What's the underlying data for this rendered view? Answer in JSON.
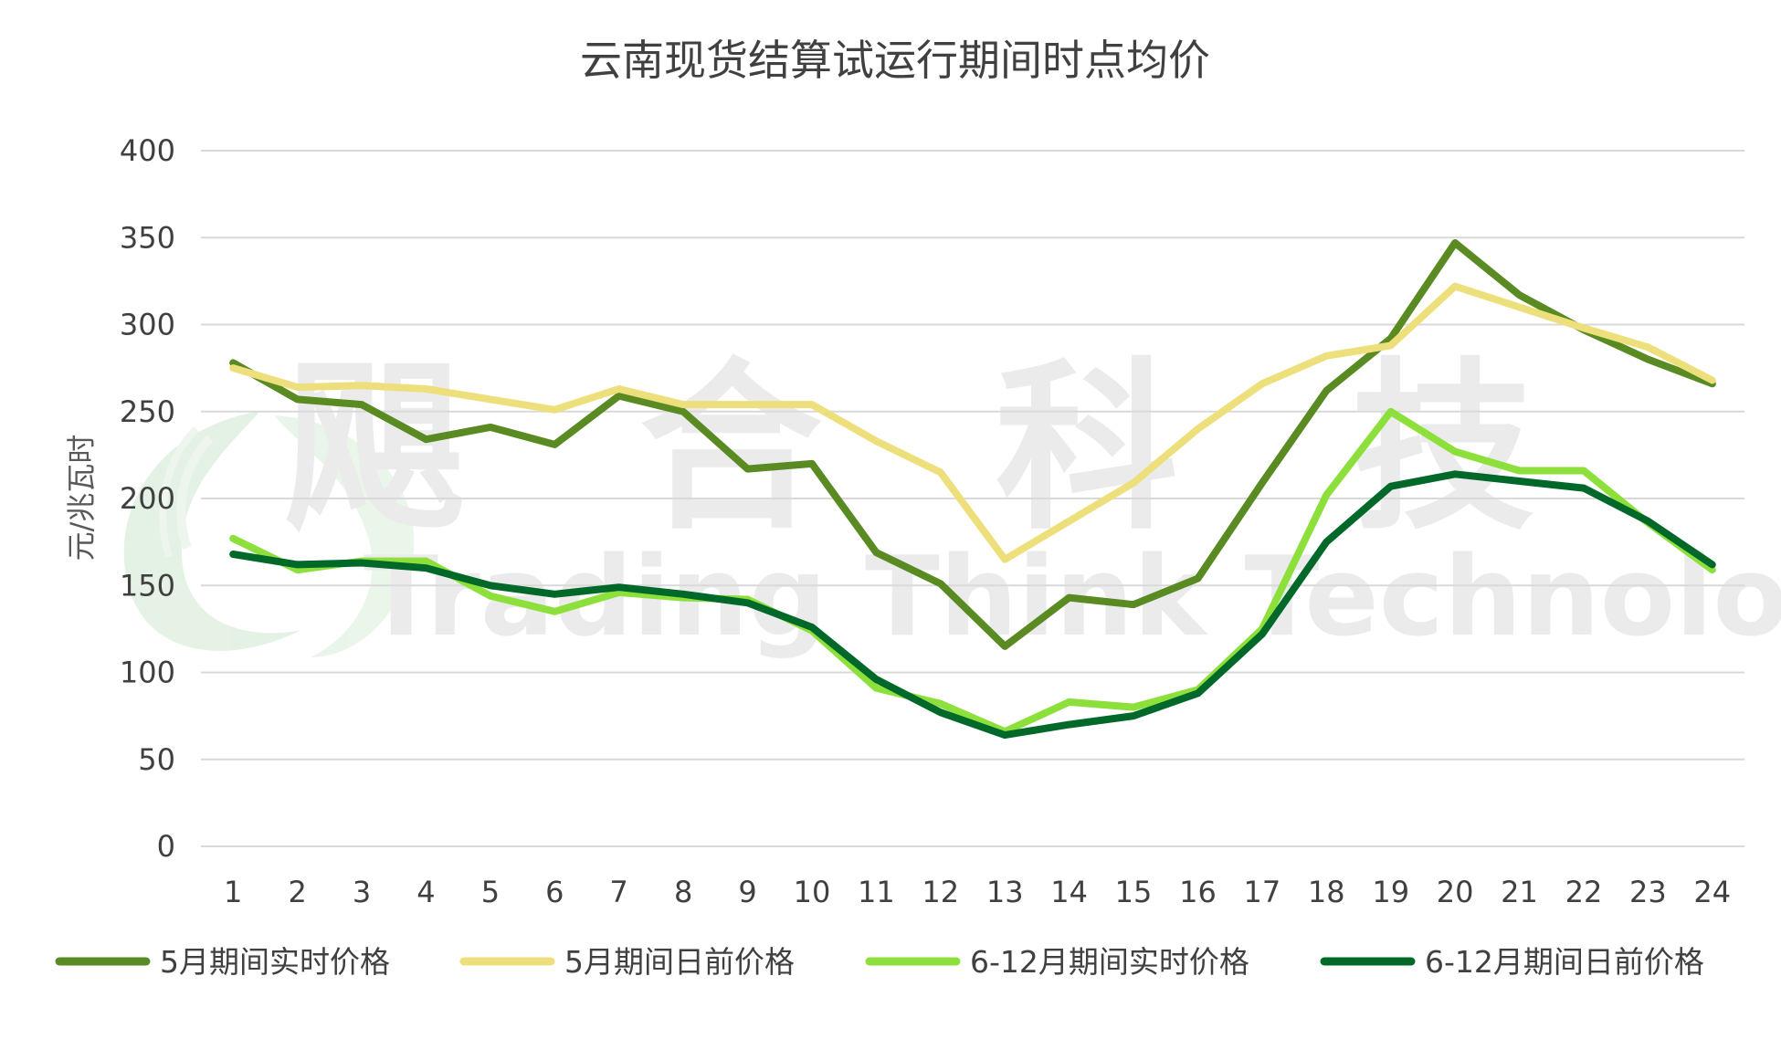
{
  "chart_data": {
    "type": "line",
    "title": "云南现货结算试运行期间时点均价",
    "ylabel": "元/兆瓦时",
    "xlabel": "",
    "ylim": [
      0,
      400
    ],
    "yticks": [
      "0",
      "50",
      "100",
      "150",
      "200",
      "250",
      "300",
      "350",
      "400"
    ],
    "grid": true,
    "legend_position": "bottom",
    "categories": [
      "1",
      "2",
      "3",
      "4",
      "5",
      "6",
      "7",
      "8",
      "9",
      "10",
      "11",
      "12",
      "13",
      "14",
      "15",
      "16",
      "17",
      "18",
      "19",
      "20",
      "21",
      "22",
      "23",
      "24"
    ],
    "series": [
      {
        "name": "5月期间实时价格",
        "color": "#5a8a22",
        "values": [
          278,
          257,
          254,
          234,
          241,
          231,
          259,
          250,
          217,
          220,
          169,
          151,
          115,
          143,
          139,
          154,
          209,
          262,
          292,
          347,
          317,
          297,
          280,
          266
        ]
      },
      {
        "name": "5月期间日前价格",
        "color": "#ede07c",
        "values": [
          275,
          264,
          265,
          263,
          257,
          251,
          263,
          254,
          254,
          254,
          233,
          215,
          165,
          187,
          209,
          240,
          266,
          282,
          288,
          322,
          310,
          298,
          287,
          268
        ]
      },
      {
        "name": "6-12月期间实时价格",
        "color": "#8de03c",
        "values": [
          177,
          159,
          164,
          164,
          144,
          135,
          146,
          143,
          142,
          124,
          91,
          82,
          66,
          83,
          80,
          90,
          125,
          202,
          250,
          227,
          216,
          216,
          186,
          159
        ]
      },
      {
        "name": "6-12月期间日前价格",
        "color": "#00692a",
        "values": [
          168,
          162,
          163,
          160,
          150,
          145,
          149,
          145,
          140,
          126,
          96,
          77,
          64,
          70,
          75,
          88,
          122,
          175,
          207,
          214,
          210,
          206,
          187,
          162
        ]
      }
    ]
  },
  "watermark": {
    "chinese": "飓 合 科 技",
    "english": "Trading Think Technology"
  }
}
